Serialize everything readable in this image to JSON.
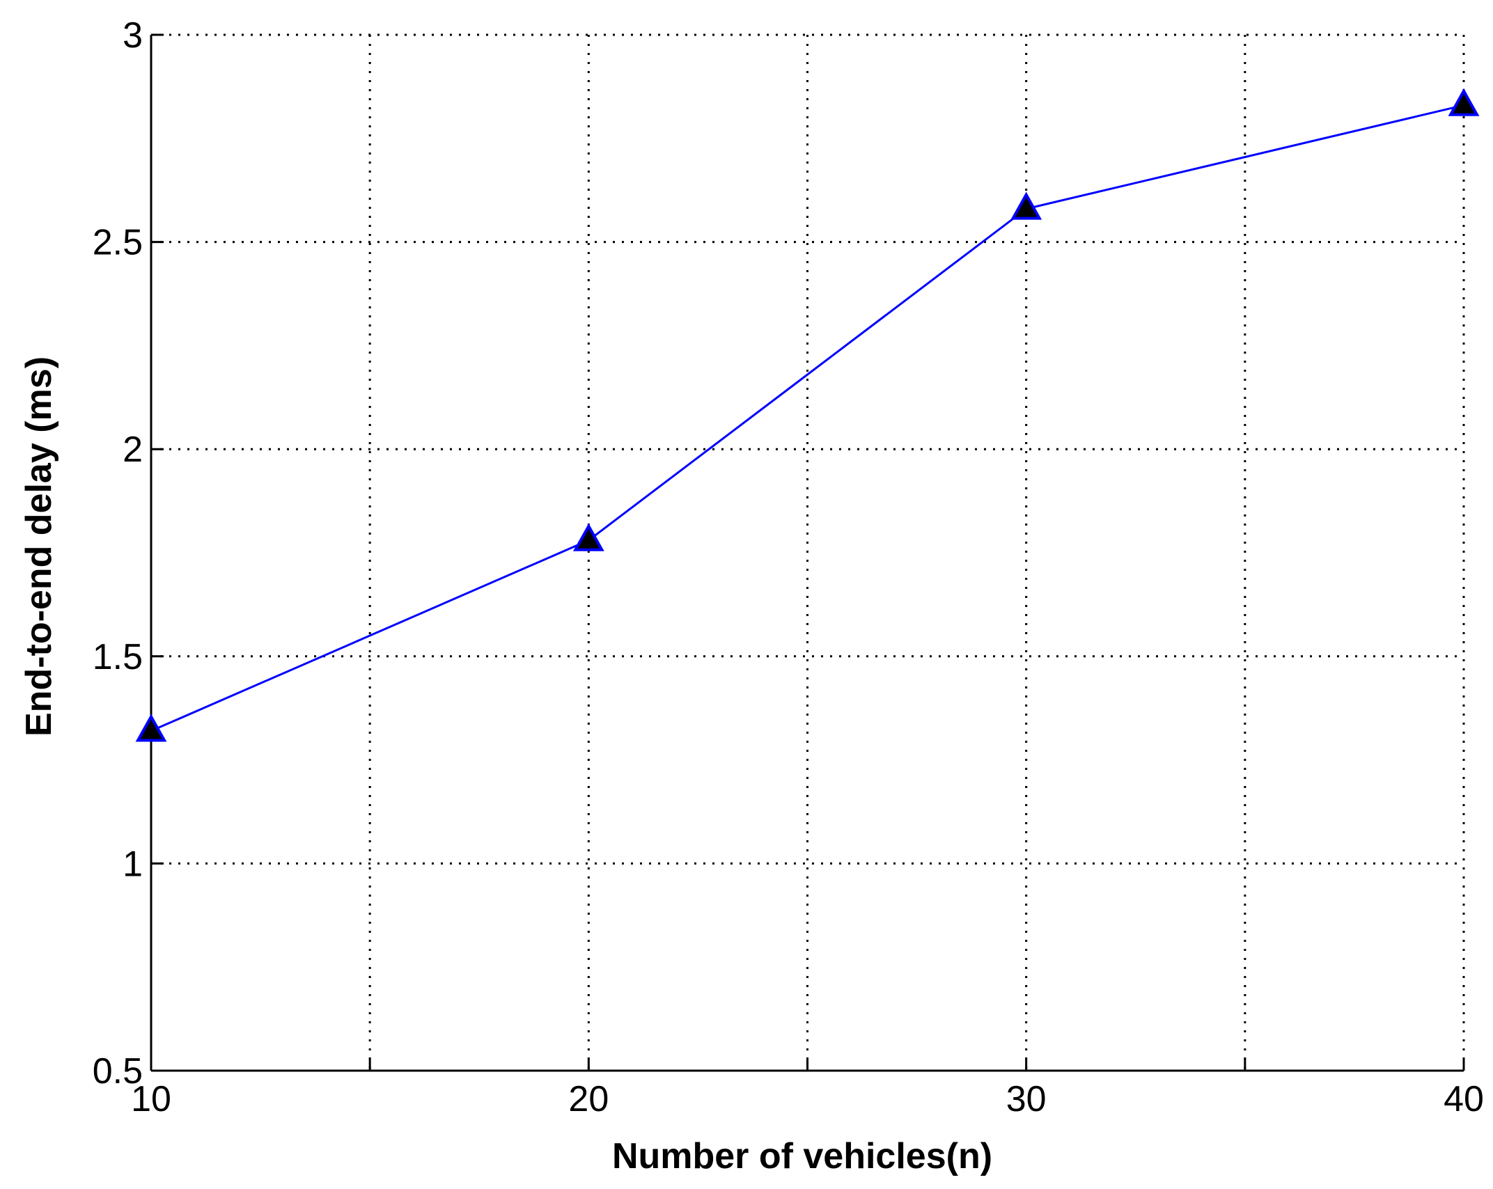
{
  "chart_data": {
    "type": "line",
    "title": "",
    "xlabel": "Number of vehicles(n)",
    "ylabel": "End-to-end delay (ms)",
    "xlim": [
      10,
      40
    ],
    "ylim": [
      0.5,
      3
    ],
    "x_ticks": [
      10,
      15,
      20,
      25,
      30,
      35,
      40
    ],
    "x_tick_labels": [
      "10",
      "",
      "20",
      "",
      "30",
      "",
      "40"
    ],
    "y_ticks": [
      0.5,
      1,
      1.5,
      2,
      2.5,
      3
    ],
    "y_tick_labels": [
      "0.5",
      "1",
      "1.5",
      "2",
      "2.5",
      "3"
    ],
    "grid": true,
    "grid_style": "dotted",
    "x": [
      10,
      20,
      30,
      40
    ],
    "series": [
      {
        "values": [
          1.32,
          1.78,
          2.58,
          2.83
        ],
        "line_color": "#0000ff",
        "marker": "triangle",
        "marker_fill": "#000000",
        "marker_edge": "#0000ff"
      }
    ]
  }
}
